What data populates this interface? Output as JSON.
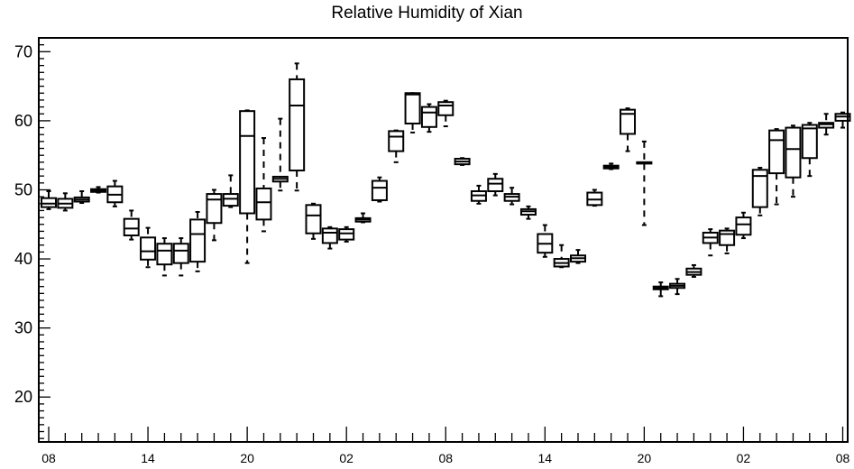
{
  "chart_data": {
    "type": "boxplot",
    "title": "Relative Humidity of Xian",
    "xlabel": "",
    "ylabel": "",
    "ylim": [
      13.5,
      72
    ],
    "y_ticks": [
      20,
      30,
      40,
      50,
      60,
      70
    ],
    "x_tick_labels": [
      {
        "hour": 0,
        "label": "08"
      },
      {
        "hour": 6,
        "label": "14"
      },
      {
        "hour": 12,
        "label": "20"
      },
      {
        "hour": 18,
        "label": "02"
      },
      {
        "hour": 24,
        "label": "08"
      },
      {
        "hour": 30,
        "label": "14"
      },
      {
        "hour": 36,
        "label": "20"
      },
      {
        "hour": 42,
        "label": "02"
      },
      {
        "hour": 48,
        "label": "08"
      }
    ],
    "x_range": [
      -0.6,
      48.3
    ],
    "grid": false,
    "legend": "none",
    "boxes": [
      {
        "hour": 0,
        "min": 47.2,
        "q1": 47.5,
        "median": 48.0,
        "q3": 48.8,
        "max": 49.8
      },
      {
        "hour": 1,
        "min": 47.0,
        "q1": 47.4,
        "median": 48.0,
        "q3": 48.7,
        "max": 49.5
      },
      {
        "hour": 2,
        "min": 48.1,
        "q1": 48.3,
        "median": 48.6,
        "q3": 48.9,
        "max": 49.8
      },
      {
        "hour": 3,
        "min": 49.6,
        "q1": 49.7,
        "median": 49.9,
        "q3": 50.1,
        "max": 50.4
      },
      {
        "hour": 4,
        "min": 47.6,
        "q1": 48.2,
        "median": 49.3,
        "q3": 50.5,
        "max": 51.3
      },
      {
        "hour": 5,
        "min": 42.8,
        "q1": 43.4,
        "median": 44.4,
        "q3": 45.8,
        "max": 47.0
      },
      {
        "hour": 6,
        "min": 38.8,
        "q1": 39.9,
        "median": 41.1,
        "q3": 43.1,
        "max": 44.5
      },
      {
        "hour": 7,
        "min": 37.6,
        "q1": 39.2,
        "median": 41.2,
        "q3": 42.2,
        "max": 43.0
      },
      {
        "hour": 8,
        "min": 37.6,
        "q1": 39.4,
        "median": 41.2,
        "q3": 42.2,
        "max": 43.0
      },
      {
        "hour": 9,
        "min": 38.2,
        "q1": 39.6,
        "median": 43.6,
        "q3": 45.7,
        "max": 46.8
      },
      {
        "hour": 10,
        "min": 42.7,
        "q1": 45.2,
        "median": 48.6,
        "q3": 49.4,
        "max": 50.0
      },
      {
        "hour": 11,
        "min": 47.5,
        "q1": 47.7,
        "median": 48.7,
        "q3": 49.4,
        "max": 52.1
      },
      {
        "hour": 12,
        "min": 39.4,
        "q1": 46.6,
        "median": 57.8,
        "q3": 61.4,
        "max": 61.5
      },
      {
        "hour": 13,
        "min": 44.0,
        "q1": 45.7,
        "median": 48.2,
        "q3": 50.2,
        "max": 57.5
      },
      {
        "hour": 14,
        "min": 49.9,
        "q1": 51.2,
        "median": 51.6,
        "q3": 51.9,
        "max": 60.3
      },
      {
        "hour": 15,
        "min": 49.9,
        "q1": 52.8,
        "median": 62.2,
        "q3": 66.0,
        "max": 68.3
      },
      {
        "hour": 16,
        "min": 42.9,
        "q1": 43.7,
        "median": 46.3,
        "q3": 47.8,
        "max": 48.0
      },
      {
        "hour": 17,
        "min": 41.5,
        "q1": 42.3,
        "median": 43.8,
        "q3": 44.4,
        "max": 44.6
      },
      {
        "hour": 18,
        "min": 42.5,
        "q1": 42.8,
        "median": 43.7,
        "q3": 44.3,
        "max": 44.6
      },
      {
        "hour": 19,
        "min": 45.3,
        "q1": 45.4,
        "median": 45.7,
        "q3": 45.9,
        "max": 46.6
      },
      {
        "hour": 20,
        "min": 48.3,
        "q1": 48.5,
        "median": 50.3,
        "q3": 51.3,
        "max": 51.8
      },
      {
        "hour": 21,
        "min": 54.0,
        "q1": 55.6,
        "median": 57.7,
        "q3": 58.5,
        "max": 58.6
      },
      {
        "hour": 22,
        "min": 58.3,
        "q1": 59.6,
        "median": 63.8,
        "q3": 64.0,
        "max": 64.0
      },
      {
        "hour": 23,
        "min": 58.4,
        "q1": 59.1,
        "median": 61.2,
        "q3": 62.0,
        "max": 62.4
      },
      {
        "hour": 24,
        "min": 59.2,
        "q1": 60.8,
        "median": 62.2,
        "q3": 62.7,
        "max": 62.9
      },
      {
        "hour": 25,
        "min": 53.6,
        "q1": 53.7,
        "median": 54.1,
        "q3": 54.5,
        "max": 54.6
      },
      {
        "hour": 26,
        "min": 48.0,
        "q1": 48.4,
        "median": 49.2,
        "q3": 49.8,
        "max": 50.6
      },
      {
        "hour": 27,
        "min": 49.2,
        "q1": 49.8,
        "median": 50.9,
        "q3": 51.6,
        "max": 52.3
      },
      {
        "hour": 28,
        "min": 47.9,
        "q1": 48.4,
        "median": 49.0,
        "q3": 49.4,
        "max": 50.3
      },
      {
        "hour": 29,
        "min": 45.8,
        "q1": 46.4,
        "median": 46.9,
        "q3": 47.2,
        "max": 47.6
      },
      {
        "hour": 30,
        "min": 40.3,
        "q1": 40.9,
        "median": 42.2,
        "q3": 43.6,
        "max": 44.9
      },
      {
        "hour": 31,
        "min": 38.8,
        "q1": 38.9,
        "median": 39.4,
        "q3": 40.0,
        "max": 42.0
      },
      {
        "hour": 32,
        "min": 39.4,
        "q1": 39.6,
        "median": 40.1,
        "q3": 40.5,
        "max": 41.3
      },
      {
        "hour": 33,
        "min": 47.7,
        "q1": 47.8,
        "median": 48.6,
        "q3": 49.6,
        "max": 50.0
      },
      {
        "hour": 34,
        "min": 53.0,
        "q1": 53.1,
        "median": 53.3,
        "q3": 53.5,
        "max": 53.8
      },
      {
        "hour": 35,
        "min": 55.6,
        "q1": 58.1,
        "median": 61.0,
        "q3": 61.6,
        "max": 61.8
      },
      {
        "hour": 36,
        "min": 44.9,
        "q1": 53.8,
        "median": 53.9,
        "q3": 54.0,
        "max": 57.0
      },
      {
        "hour": 37,
        "min": 34.6,
        "q1": 35.6,
        "median": 35.8,
        "q3": 36.0,
        "max": 36.6
      },
      {
        "hour": 38,
        "min": 34.9,
        "q1": 35.8,
        "median": 36.1,
        "q3": 36.4,
        "max": 37.1
      },
      {
        "hour": 39,
        "min": 37.4,
        "q1": 37.7,
        "median": 38.1,
        "q3": 38.6,
        "max": 39.1
      },
      {
        "hour": 40,
        "min": 40.5,
        "q1": 42.3,
        "median": 43.1,
        "q3": 43.8,
        "max": 44.3
      },
      {
        "hour": 41,
        "min": 40.8,
        "q1": 42.0,
        "median": 43.6,
        "q3": 44.1,
        "max": 44.4
      },
      {
        "hour": 42,
        "min": 43.0,
        "q1": 43.5,
        "median": 45.0,
        "q3": 46.0,
        "max": 46.7
      },
      {
        "hour": 43,
        "min": 46.3,
        "q1": 47.5,
        "median": 52.0,
        "q3": 52.9,
        "max": 53.2
      },
      {
        "hour": 44,
        "min": 47.9,
        "q1": 52.4,
        "median": 57.2,
        "q3": 58.6,
        "max": 58.8
      },
      {
        "hour": 45,
        "min": 49.0,
        "q1": 51.8,
        "median": 55.9,
        "q3": 59.0,
        "max": 59.3
      },
      {
        "hour": 46,
        "min": 52.0,
        "q1": 54.6,
        "median": 58.9,
        "q3": 59.4,
        "max": 59.7
      },
      {
        "hour": 47,
        "min": 58.0,
        "q1": 59.0,
        "median": 59.5,
        "q3": 59.7,
        "max": 61.0
      },
      {
        "hour": 48,
        "min": 59.0,
        "q1": 60.0,
        "median": 60.6,
        "q3": 61.0,
        "max": 61.2
      }
    ]
  }
}
